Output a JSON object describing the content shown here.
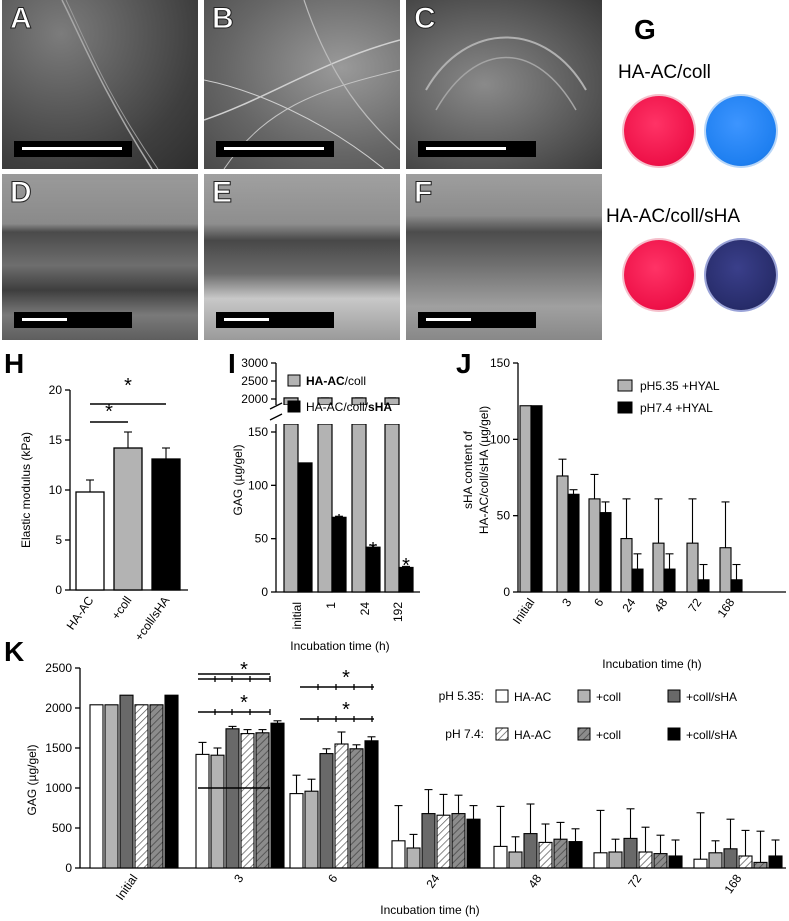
{
  "panels": {
    "A": "A",
    "B": "B",
    "C": "C",
    "D": "D",
    "E": "E",
    "F": "F",
    "G": "G",
    "H": "H",
    "I": "I",
    "J": "J",
    "K": "K"
  },
  "dish": {
    "label1": "HA-AC/coll",
    "label2": "HA-AC/coll/sHA",
    "colors": {
      "red": "#ff1d55",
      "blue": "#1e7ff0",
      "purple": "#27306e"
    }
  },
  "chart_data": [
    {
      "panel": "H",
      "type": "bar",
      "categories": [
        "HA-AC",
        "+coll",
        "+coll/sHA"
      ],
      "values": [
        9.8,
        14.2,
        13.1
      ],
      "errors": [
        1.2,
        1.6,
        1.1
      ],
      "colors": [
        "#ffffff",
        "#b3b3b3",
        "#000000"
      ],
      "ylabel": "Elastic modulus (kPa)",
      "ylim": [
        0,
        20
      ],
      "yticks": [
        0,
        5,
        10,
        15,
        20
      ],
      "significance": [
        "*",
        "*"
      ]
    },
    {
      "panel": "I",
      "type": "bar",
      "categories": [
        "initial",
        "1",
        "24",
        "192"
      ],
      "xlabel": "Incubation time (h)",
      "ylabel": "GAG (µg/gel)",
      "yticks_lower": [
        0,
        50,
        100,
        150
      ],
      "yticks_upper": [
        2000,
        2500,
        3000
      ],
      "legend": [
        {
          "name_bold": "HA-AC",
          "name_rest": "/coll"
        },
        {
          "name_rest": "HA-AC/coll/",
          "name_bold": "sHA"
        }
      ],
      "series": [
        {
          "name": "HA-AC/coll",
          "values": [
            2030,
            2030,
            2030,
            2030
          ],
          "errors": [
            0,
            12,
            12,
            12
          ],
          "color": "#b3b3b3"
        },
        {
          "name": "HA-AC/coll/sHA",
          "values": [
            121,
            70,
            42,
            23
          ],
          "errors": [
            0,
            1,
            2,
            1
          ],
          "color": "#000000"
        }
      ],
      "significance": [
        "*",
        "*",
        "*"
      ]
    },
    {
      "panel": "J",
      "type": "bar",
      "categories": [
        "Initial",
        "3",
        "6",
        "24",
        "48",
        "72",
        "168"
      ],
      "xlabel": "Incubation time (h)",
      "ylabel_line1": "sHA content of",
      "ylabel_line2": "HA-AC/coll/sHA (µg/gel)",
      "ylim": [
        0,
        150
      ],
      "yticks": [
        0,
        50,
        100,
        150
      ],
      "series": [
        {
          "name": "pH5.35 +HYAL",
          "values": [
            122,
            76,
            61,
            35,
            32,
            32,
            29
          ],
          "errors": [
            0,
            11,
            16,
            26,
            29,
            29,
            30
          ],
          "color": "#b3b3b3"
        },
        {
          "name": "pH7.4 +HYAL",
          "values": [
            122,
            64,
            52,
            15,
            15,
            8,
            8
          ],
          "errors": [
            0,
            3,
            7,
            10,
            10,
            10,
            10
          ],
          "color": "#000000"
        }
      ]
    },
    {
      "panel": "K",
      "type": "bar",
      "categories": [
        "Initial",
        "3",
        "6",
        "24",
        "48",
        "72",
        "168"
      ],
      "xlabel": "Incubation time (h)",
      "ylabel": "GAG (µg/gel)",
      "ylim": [
        0,
        2500
      ],
      "yticks": [
        0,
        500,
        1000,
        1500,
        2000,
        2500
      ],
      "legend_ph1": "pH 5.35:",
      "legend_ph2": "pH 7.4:",
      "series": [
        {
          "name": "HA-AC",
          "group": "pH 5.35",
          "values": [
            2040,
            1420,
            930,
            340,
            270,
            190,
            110
          ],
          "errors": [
            0,
            150,
            230,
            440,
            500,
            530,
            580
          ],
          "color": "#ffffff",
          "pattern": "none"
        },
        {
          "name": "+coll",
          "group": "pH 5.35",
          "values": [
            2040,
            1410,
            960,
            250,
            200,
            200,
            190
          ],
          "errors": [
            0,
            90,
            150,
            170,
            190,
            160,
            150
          ],
          "color": "#b3b3b3",
          "pattern": "none"
        },
        {
          "name": "+coll/sHA",
          "group": "pH 5.35",
          "values": [
            2160,
            1740,
            1430,
            680,
            430,
            370,
            240
          ],
          "errors": [
            0,
            30,
            60,
            300,
            370,
            370,
            370
          ],
          "color": "#696969",
          "pattern": "none"
        },
        {
          "name": "HA-AC",
          "group": "pH 7.4",
          "values": [
            2040,
            1680,
            1550,
            660,
            320,
            200,
            150
          ],
          "errors": [
            0,
            50,
            150,
            260,
            230,
            310,
            320
          ],
          "color": "#ffffff",
          "pattern": "hatch"
        },
        {
          "name": "+coll",
          "group": "pH 7.4",
          "values": [
            2040,
            1690,
            1490,
            680,
            360,
            180,
            70
          ],
          "errors": [
            0,
            40,
            50,
            230,
            210,
            230,
            390
          ],
          "color": "#999999",
          "pattern": "hatch"
        },
        {
          "name": "+coll/sHA",
          "group": "pH 7.4",
          "values": [
            2160,
            1810,
            1590,
            610,
            330,
            150,
            150
          ],
          "errors": [
            0,
            30,
            50,
            170,
            160,
            200,
            200
          ],
          "color": "#000000",
          "pattern": "none"
        }
      ],
      "significance": [
        "*",
        "*",
        "*",
        "*"
      ]
    }
  ]
}
